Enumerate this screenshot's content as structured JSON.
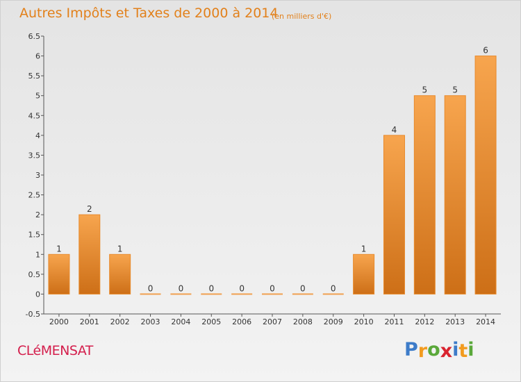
{
  "page": {
    "title": "Autres Impôts et Taxes de 2000 à 2014",
    "subtitle": "(en milliers d'€)",
    "commune": "CLéMENSAT",
    "logo": {
      "text": "Proxiti",
      "letters": [
        "P",
        "r",
        "o",
        "x",
        "i",
        "t",
        "i"
      ],
      "colors": [
        "#3d7cc9",
        "#f29b1f",
        "#5aa83a",
        "#d9232f",
        "#3d7cc9",
        "#f29b1f",
        "#5aa83a"
      ]
    }
  },
  "chart_data": {
    "type": "bar",
    "title": "Autres Impôts et Taxes de 2000 à 2014",
    "subtitle": "(en milliers d'€)",
    "categories": [
      "2000",
      "2001",
      "2002",
      "2003",
      "2004",
      "2005",
      "2006",
      "2007",
      "2008",
      "2009",
      "2010",
      "2011",
      "2012",
      "2013",
      "2014"
    ],
    "values": [
      1,
      2,
      1,
      0,
      0,
      0,
      0,
      0,
      0,
      0,
      1,
      4,
      5,
      5,
      6
    ],
    "value_labels": [
      "1",
      "2",
      "1",
      "0",
      "0",
      "0",
      "0",
      "0",
      "0",
      "0",
      "1",
      "4",
      "5",
      "5",
      "6"
    ],
    "ylim": [
      -0.5,
      6.5
    ],
    "yticks": [
      -0.5,
      0,
      0.5,
      1,
      1.5,
      2,
      2.5,
      3,
      3.5,
      4,
      4.5,
      5,
      5.5,
      6,
      6.5
    ],
    "ytick_labels": [
      "-0.5",
      "0",
      "0.5",
      "1",
      "1.5",
      "2",
      "2.5",
      "3",
      "3.5",
      "4",
      "4.5",
      "5",
      "5.5",
      "6",
      "6.5"
    ],
    "xlabel": "",
    "ylabel": "",
    "grid": false,
    "legend": "none",
    "colors": {
      "bar_light": "#f7a54e",
      "bar_dark": "#cd6f17",
      "bar_edge": "#e88a2c",
      "zero_bar": "#f0a050",
      "axis": "#555555",
      "text": "#333333"
    }
  }
}
